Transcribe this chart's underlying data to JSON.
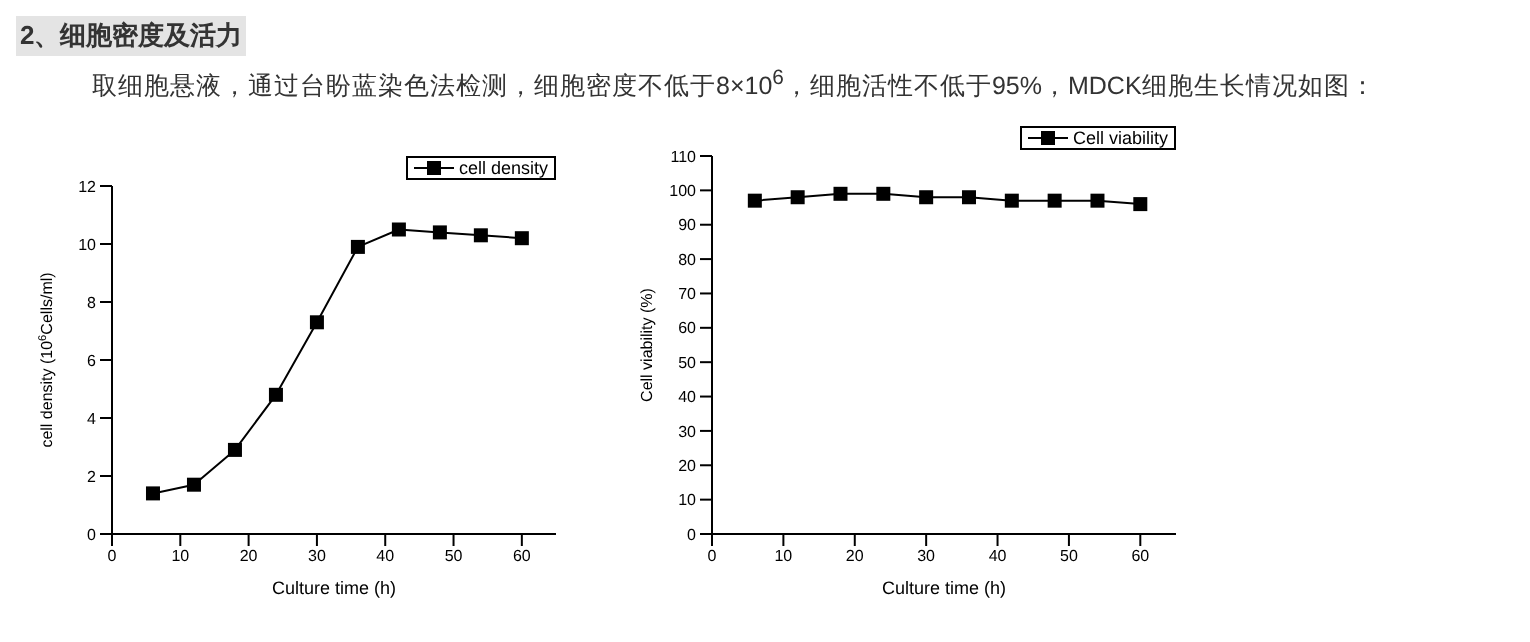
{
  "chart_data": [
    {
      "type": "line",
      "title": "2、细胞密度及活力",
      "subtitle": "取细胞悬液，通过台盼蓝染色法检测，细胞密度不低于8×10$^{6}$，细胞活性不低于95%，MDCK细胞生长情况如图：",
      "xlabel": "Culture time (h)",
      "ylabel": "cell density (10$^{6}$Cells/ml)",
      "x": [
        6,
        12,
        18,
        24,
        30,
        36,
        42,
        48,
        54,
        60
      ],
      "series": [
        {
          "name": "cell density",
          "color": "#000000",
          "values": [
            1.4,
            1.7,
            2.9,
            4.8,
            7.3,
            9.9,
            10.5,
            10.4,
            10.3,
            10.2
          ]
        }
      ],
      "xlim": [
        0,
        65
      ],
      "xticks": [
        0,
        10,
        20,
        30,
        40,
        50,
        60
      ],
      "ylim": [
        0,
        12
      ],
      "yticks": [
        0,
        2,
        4,
        6,
        8,
        10,
        12
      ],
      "grid": false,
      "legend": "top right",
      "marker": "square",
      "line_style": "solid"
    },
    {
      "type": "line",
      "xlabel": "Culture time (h)",
      "ylabel": "Cell viability (%)",
      "x": [
        6,
        12,
        18,
        24,
        30,
        36,
        42,
        48,
        54,
        60
      ],
      "series": [
        {
          "name": "Cell viability",
          "color": "#000000",
          "values": [
            97,
            98,
            99,
            99,
            98,
            98,
            97,
            97,
            97,
            96
          ]
        }
      ],
      "xlim": [
        0,
        65
      ],
      "xticks": [
        0,
        10,
        20,
        30,
        40,
        50,
        60
      ],
      "ylim": [
        0,
        110
      ],
      "yticks": [
        0,
        10,
        20,
        30,
        40,
        50,
        60,
        70,
        80,
        90,
        100,
        110
      ],
      "grid": false,
      "legend": "top right",
      "marker": "square",
      "line_style": "solid"
    }
  ]
}
